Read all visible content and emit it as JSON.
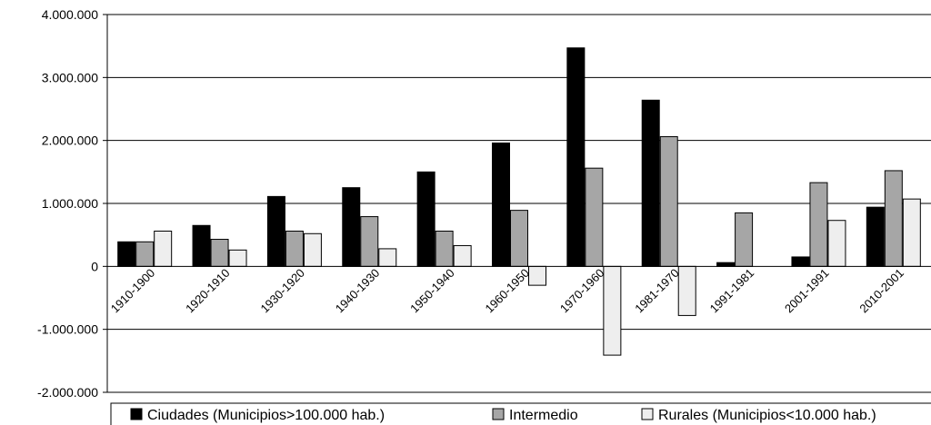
{
  "chart_data": {
    "type": "bar",
    "title": "",
    "xlabel": "",
    "ylabel": "",
    "ylim": [
      -2000000,
      4000000
    ],
    "y_ticks": [
      -2000000,
      -1000000,
      0,
      1000000,
      2000000,
      3000000,
      4000000
    ],
    "y_tick_labels": [
      "-2.000.000",
      "-1.000.000",
      "0",
      "1.000.000",
      "2.000.000",
      "3.000.000",
      "4.000.000"
    ],
    "grid": "horizontal",
    "legend_position": "bottom",
    "categories": [
      "1910-1900",
      "1920-1910",
      "1930-1920",
      "1940-1930",
      "1950-1940",
      "1960-1950",
      "1970-1960",
      "1981-1970",
      "1991-1981",
      "2001-1991",
      "2010-2001"
    ],
    "series": [
      {
        "name": "Ciudades (Municipios>100.000 hab.)",
        "color": "#000000",
        "values": [
          390000,
          650000,
          1110000,
          1250000,
          1500000,
          1960000,
          3470000,
          2640000,
          60000,
          150000,
          940000
        ]
      },
      {
        "name": "Intermedio",
        "color": "#a6a6a6",
        "values": [
          390000,
          430000,
          560000,
          790000,
          560000,
          890000,
          1560000,
          2060000,
          850000,
          1330000,
          1520000
        ]
      },
      {
        "name": "Rurales (Municipios<10.000 hab.)",
        "color": "#eeeeee",
        "values": [
          560000,
          260000,
          520000,
          280000,
          330000,
          -300000,
          -1410000,
          -780000,
          0,
          730000,
          1070000
        ]
      }
    ]
  }
}
